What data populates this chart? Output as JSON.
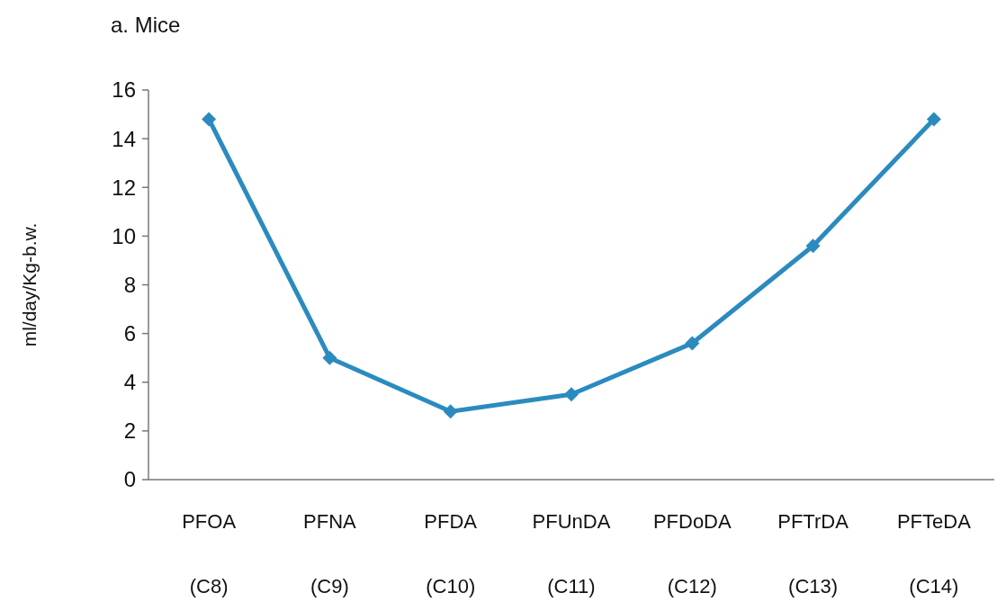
{
  "chart_data": {
    "type": "line",
    "title": "a. Mice",
    "ylabel": "ml/day/Kg-b.w.",
    "categories": [
      "PFOA\n(C8)",
      "PFNA\n(C9)",
      "PFDA\n(C10)",
      "PFUnDA\n(C11)",
      "PFDoDA\n(C12)",
      "PFTrDA\n(C13)",
      "PFTeDA\n(C14)"
    ],
    "series": [
      {
        "color": "#2b8bbf",
        "values": [
          14.8,
          5.0,
          2.8,
          3.5,
          5.6,
          9.6,
          14.8
        ]
      }
    ],
    "ylim": [
      0,
      16
    ],
    "yticks": [
      0,
      2,
      4,
      6,
      8,
      10,
      12,
      14,
      16
    ],
    "marker": "diamond",
    "line_style": "solid"
  }
}
